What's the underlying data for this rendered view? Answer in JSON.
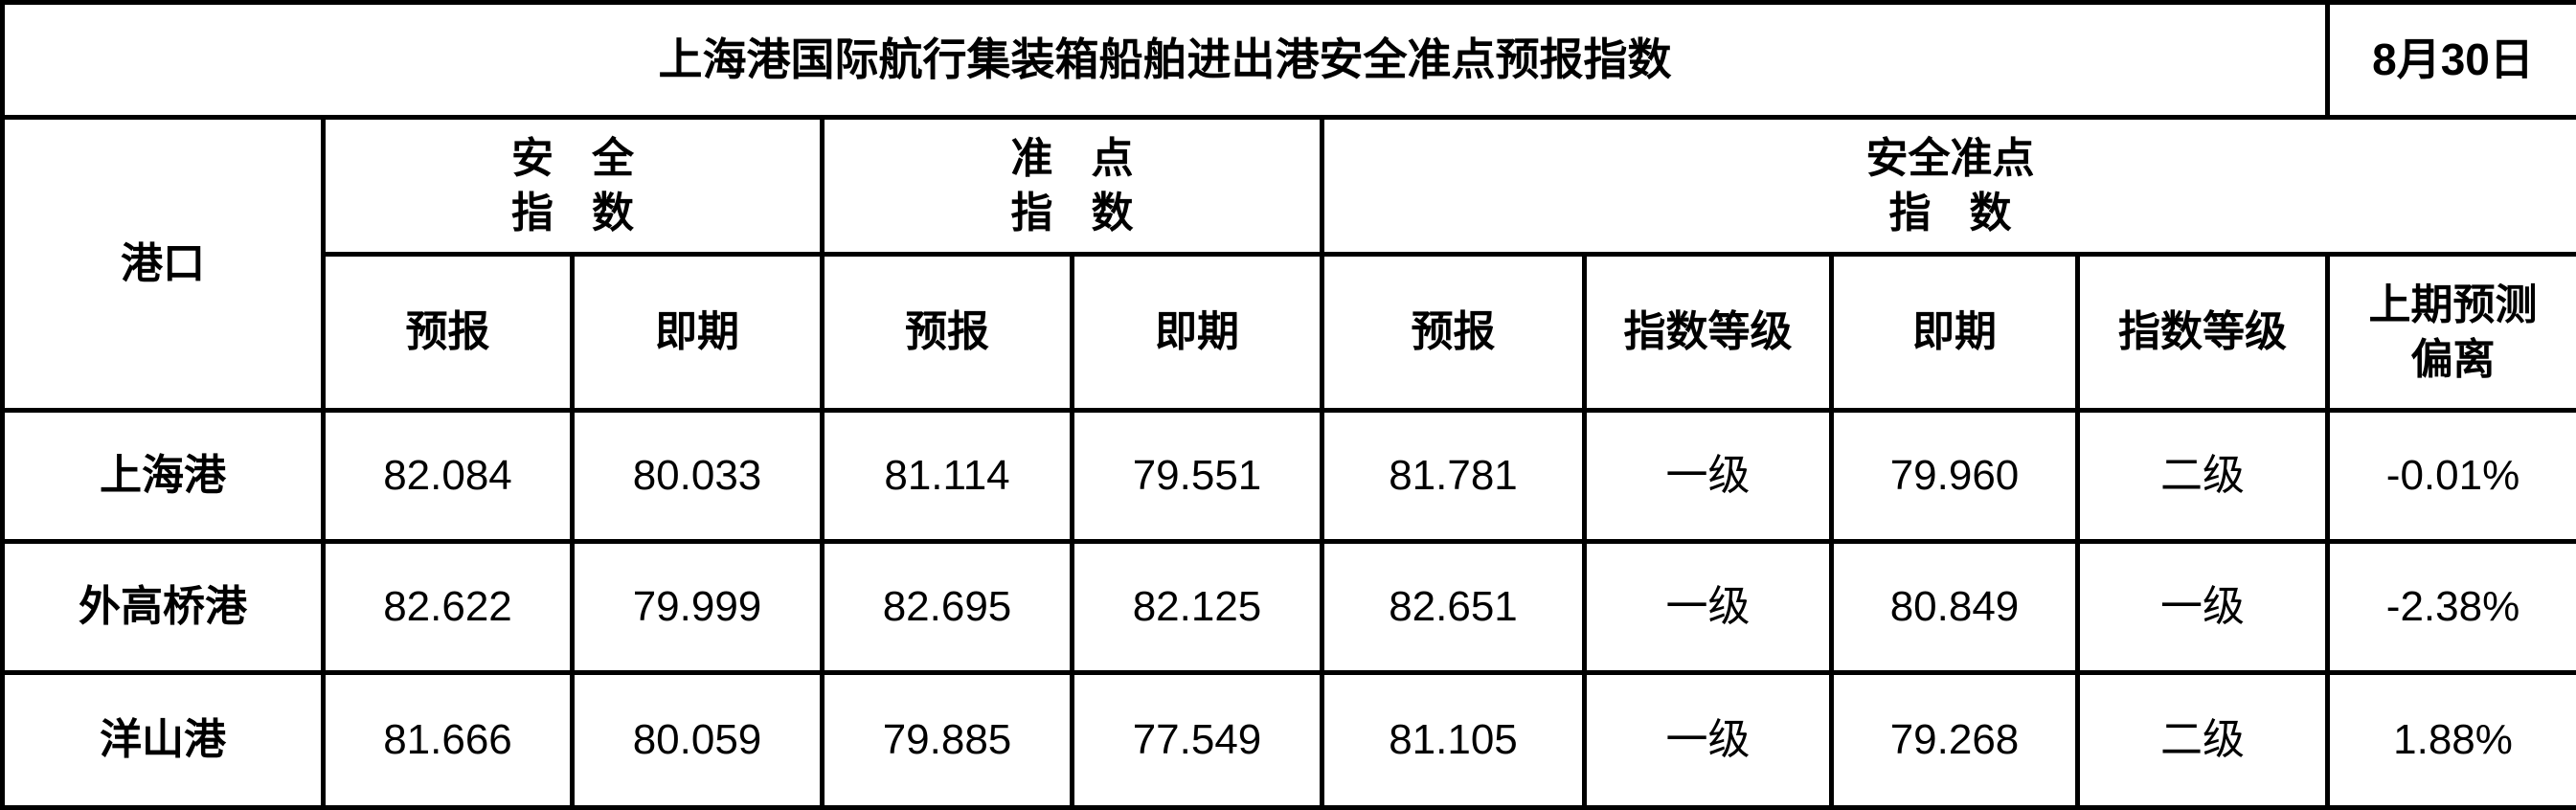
{
  "title": "上海港国际航行集装箱船舶进出港安全准点预报指数",
  "date": "8月30日",
  "headers": {
    "port": "港口",
    "safety": {
      "line1": "安全",
      "line2": "指数"
    },
    "punctuality": {
      "line1": "准点",
      "line2": "指数"
    },
    "safety_punctuality": {
      "line1": "安全准点",
      "line2": "指数"
    },
    "forecast": "预报",
    "current": "即期",
    "grade": "指数等级",
    "deviation": {
      "line1": "上期预测",
      "line2": "偏离"
    }
  },
  "rows": [
    {
      "port": "上海港",
      "safety_forecast": "82.084",
      "safety_current": "80.033",
      "punct_forecast": "81.114",
      "punct_current": "79.551",
      "sp_forecast": "81.781",
      "sp_forecast_grade": "一级",
      "sp_current": "79.960",
      "sp_current_grade": "二级",
      "deviation": "-0.01%"
    },
    {
      "port": "外高桥港",
      "safety_forecast": "82.622",
      "safety_current": "79.999",
      "punct_forecast": "82.695",
      "punct_current": "82.125",
      "sp_forecast": "82.651",
      "sp_forecast_grade": "一级",
      "sp_current": "80.849",
      "sp_current_grade": "一级",
      "deviation": "-2.38%"
    },
    {
      "port": "洋山港",
      "safety_forecast": "81.666",
      "safety_current": "80.059",
      "punct_forecast": "79.885",
      "punct_current": "77.549",
      "sp_forecast": "81.105",
      "sp_forecast_grade": "一级",
      "sp_current": "79.268",
      "sp_current_grade": "二级",
      "deviation": "1.88%"
    }
  ]
}
